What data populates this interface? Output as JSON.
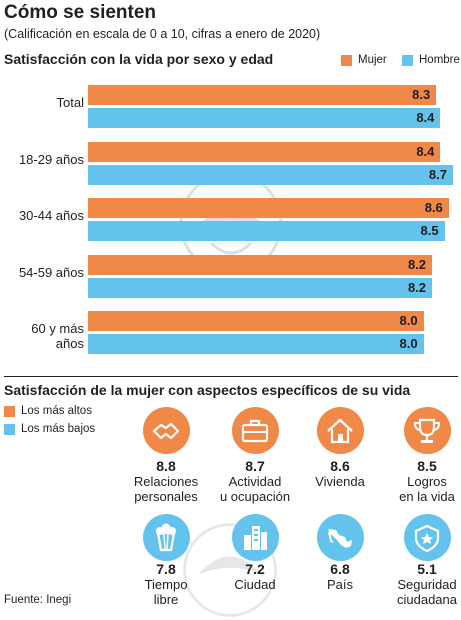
{
  "header": {
    "title": "Cómo se sienten",
    "subtitle": "(Calificación en escala de 0 a 10, cifras a enero de 2020)"
  },
  "section1": {
    "title": "Satisfacción con la vida por sexo y edad",
    "legend_mujer": "Mujer",
    "legend_hombre": "Hombre"
  },
  "section2": {
    "title": "Satisfacción de la mujer con aspectos específicos de su vida",
    "legend_high": "Los más altos",
    "legend_low": "Los más bajos"
  },
  "colors": {
    "mujer": "#f08848",
    "hombre": "#64c3ec"
  },
  "chart_data": [
    {
      "type": "bar",
      "orientation": "horizontal",
      "title": "Satisfacción con la vida por sexo y edad",
      "categories": [
        "Total",
        "18-29 años",
        "30-44 años",
        "54-59 años",
        "60 y más años"
      ],
      "series": [
        {
          "name": "Mujer",
          "values": [
            8.3,
            8.4,
            8.6,
            8.2,
            8.0
          ],
          "labels": [
            "8.3",
            "8.4",
            "8.6",
            "8.2",
            "8.0"
          ]
        },
        {
          "name": "Hombre",
          "values": [
            8.4,
            8.7,
            8.5,
            8.2,
            8.0
          ],
          "labels": [
            "8.4",
            "8.7",
            "8.5",
            "8.2",
            "8.0"
          ]
        }
      ],
      "legend": "top-right",
      "grid": false
    },
    {
      "type": "table",
      "title": "Satisfacción de la mujer con aspectos específicos de su vida",
      "items": [
        {
          "value": "8.8",
          "label": [
            "Relaciones",
            "personales"
          ],
          "group": "high",
          "icon": "handshake-icon"
        },
        {
          "value": "8.7",
          "label": [
            "Actividad",
            "u ocupación"
          ],
          "group": "high",
          "icon": "briefcase-icon"
        },
        {
          "value": "8.6",
          "label": [
            "Vivienda"
          ],
          "group": "high",
          "icon": "house-icon"
        },
        {
          "value": "8.5",
          "label": [
            "Logros",
            "en la vida"
          ],
          "group": "high",
          "icon": "trophy-icon"
        },
        {
          "value": "7.8",
          "label": [
            "Tiempo",
            "libre"
          ],
          "group": "low",
          "icon": "popcorn-icon"
        },
        {
          "value": "7.2",
          "label": [
            "Ciudad"
          ],
          "group": "low",
          "icon": "city-icon"
        },
        {
          "value": "6.8",
          "label": [
            "País"
          ],
          "group": "low",
          "icon": "mexico-map-icon"
        },
        {
          "value": "5.1",
          "label": [
            "Seguridad",
            "ciudadana"
          ],
          "group": "low",
          "icon": "police-badge-icon"
        }
      ]
    }
  ],
  "footer": {
    "source": "Fuente: Inegi"
  }
}
